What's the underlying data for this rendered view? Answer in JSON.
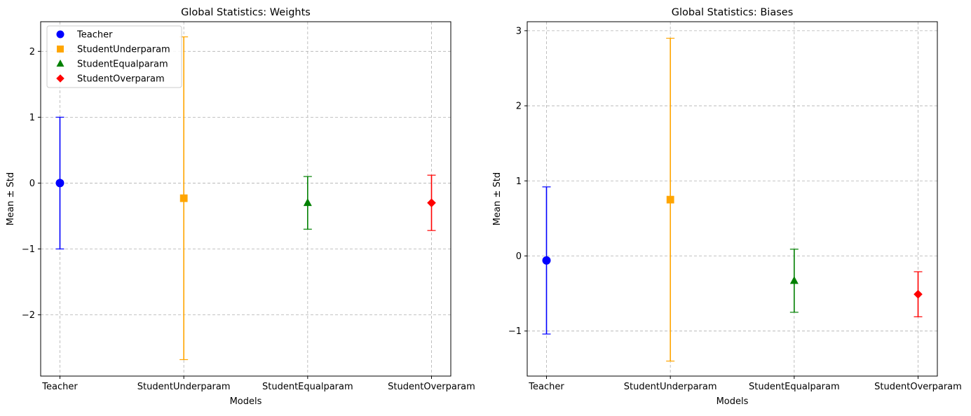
{
  "chart_data": [
    {
      "type": "scatter",
      "title": "Global Statistics: Weights",
      "xlabel": "Models",
      "ylabel": "Mean ± Std",
      "categories": [
        "Teacher",
        "StudentUnderparam",
        "StudentEqualparam",
        "StudentOverparam"
      ],
      "ylim": [
        -2.93,
        2.45
      ],
      "yticks": [
        2,
        1,
        0,
        -1,
        -2
      ],
      "ytick_labels": [
        "2",
        "1",
        "0",
        "−1",
        "−2"
      ],
      "grid": true,
      "legend": "top-left",
      "series": [
        {
          "name": "Teacher",
          "marker": "circle",
          "color": "#0000ff",
          "mean": 0.0,
          "std": 1.0
        },
        {
          "name": "StudentUnderparam",
          "marker": "square",
          "color": "#ffa500",
          "mean": -0.23,
          "std": 2.45
        },
        {
          "name": "StudentEqualparam",
          "marker": "triangle",
          "color": "#008000",
          "mean": -0.3,
          "std": 0.4
        },
        {
          "name": "StudentOverparam",
          "marker": "diamond",
          "color": "#ff0000",
          "mean": -0.3,
          "std": 0.42
        }
      ]
    },
    {
      "type": "scatter",
      "title": "Global Statistics: Biases",
      "xlabel": "Models",
      "ylabel": "Mean ± Std",
      "categories": [
        "Teacher",
        "StudentUnderparam",
        "StudentEqualparam",
        "StudentOverparam"
      ],
      "ylim": [
        -1.6,
        3.12
      ],
      "yticks": [
        3,
        2,
        1,
        0,
        -1
      ],
      "ytick_labels": [
        "3",
        "2",
        "1",
        "0",
        "−1"
      ],
      "grid": true,
      "series": [
        {
          "name": "Teacher",
          "marker": "circle",
          "color": "#0000ff",
          "mean": -0.06,
          "std": 0.98
        },
        {
          "name": "StudentUnderparam",
          "marker": "square",
          "color": "#ffa500",
          "mean": 0.75,
          "std": 2.15
        },
        {
          "name": "StudentEqualparam",
          "marker": "triangle",
          "color": "#008000",
          "mean": -0.33,
          "std": 0.42
        },
        {
          "name": "StudentOverparam",
          "marker": "diamond",
          "color": "#ff0000",
          "mean": -0.51,
          "std": 0.3
        }
      ]
    }
  ]
}
